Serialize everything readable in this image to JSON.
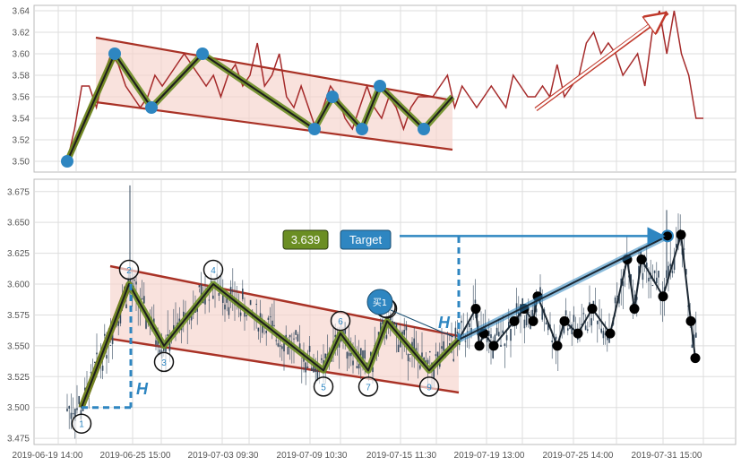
{
  "colors": {
    "price_line": "#a52a2a",
    "channel_line": "#a93226",
    "channel_fill": "#f6d2cb",
    "zigzag_outer": "#6b8e23",
    "zigzag_inner": "#1c1c1c",
    "upper_node": "#2e86c1",
    "candle": "#34495e",
    "target_badge": "#6b8e23",
    "target_button": "#2e86c1",
    "buy_badge": "#2e86c1",
    "dashed": "#2e86c1",
    "black_node": "#000000",
    "grid": "#dddddd"
  },
  "chart_data": [
    {
      "type": "line",
      "panel": "top",
      "ylim": [
        3.49,
        3.645
      ],
      "y_ticks": [
        "3.50",
        "3.52",
        "3.54",
        "3.56",
        "3.58",
        "3.60",
        "3.62",
        "3.64"
      ],
      "series": [
        {
          "values": [
            3.5,
            3.53,
            3.57,
            3.57,
            3.55,
            3.58,
            3.6,
            3.59,
            3.57,
            3.56,
            3.55,
            3.56,
            3.58,
            3.57,
            3.58,
            3.59,
            3.6,
            3.59,
            3.58,
            3.57,
            3.58,
            3.56,
            3.58,
            3.59,
            3.57,
            3.58,
            3.61,
            3.57,
            3.58,
            3.6,
            3.56,
            3.55,
            3.57,
            3.55,
            3.53,
            3.55,
            3.57,
            3.56,
            3.54,
            3.53,
            3.55,
            3.57,
            3.55,
            3.54,
            3.56,
            3.55,
            3.53,
            3.55,
            3.56,
            3.56,
            3.56,
            3.57,
            3.58,
            3.55,
            3.57,
            3.56,
            3.55,
            3.56,
            3.57,
            3.56,
            3.55,
            3.58,
            3.57,
            3.56,
            3.56,
            3.57,
            3.56,
            3.59,
            3.56,
            3.57,
            3.58,
            3.61,
            3.62,
            3.6,
            3.61,
            3.6,
            3.58,
            3.59,
            3.6,
            3.57,
            3.62,
            3.64,
            3.6,
            3.64,
            3.6,
            3.58,
            3.54,
            3.54
          ]
        }
      ],
      "zigzag": [
        {
          "point": 1,
          "value": 3.5
        },
        {
          "point": 2,
          "value": 3.6
        },
        {
          "point": 3,
          "value": 3.55
        },
        {
          "point": 4,
          "value": 3.6
        },
        {
          "point": 5,
          "value": 3.53
        },
        {
          "point": 6,
          "value": 3.56
        },
        {
          "point": 7,
          "value": 3.53
        },
        {
          "point": 8,
          "value": 3.57
        },
        {
          "point": 9,
          "value": 3.53
        },
        {
          "point": 10,
          "value": 3.56
        }
      ],
      "target_arrow": {
        "from": 3.55,
        "to": 3.64
      }
    },
    {
      "type": "candlestick",
      "panel": "bottom",
      "ylim": [
        3.47,
        3.685
      ],
      "y_ticks": [
        "3.475",
        "3.500",
        "3.525",
        "3.550",
        "3.575",
        "3.600",
        "3.625",
        "3.650",
        "3.675"
      ],
      "x_ticks": [
        "2019-06-19 14:00",
        "2019-06-25 15:00",
        "2019-07-03 09:30",
        "2019-07-09 10:30",
        "2019-07-15 11:30",
        "2019-07-19 13:00",
        "2019-07-25 14:00",
        "2019-07-31 15:00"
      ],
      "pattern_points": [
        {
          "label": "1",
          "value": 3.5
        },
        {
          "label": "2",
          "value": 3.6
        },
        {
          "label": "3",
          "value": 3.55
        },
        {
          "label": "4",
          "value": 3.6
        },
        {
          "label": "5",
          "value": 3.53
        },
        {
          "label": "6",
          "value": 3.56
        },
        {
          "label": "7",
          "value": 3.53
        },
        {
          "label": "8",
          "value": 3.57
        },
        {
          "label": "9",
          "value": 3.53
        }
      ],
      "breakout_value": 3.555,
      "target_value": 3.639,
      "target_text": "3.639",
      "target_button": "Target",
      "buy_label": "买1",
      "height_label": "H",
      "forecast_points": [
        3.555,
        3.58,
        3.55,
        3.56,
        3.55,
        3.57,
        3.58,
        3.57,
        3.59,
        3.55,
        3.57,
        3.56,
        3.58,
        3.56,
        3.62,
        3.58,
        3.62,
        3.59,
        3.64,
        3.57,
        3.54
      ]
    }
  ]
}
